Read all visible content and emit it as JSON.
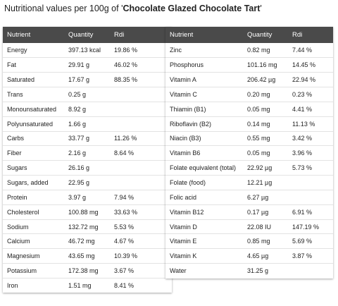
{
  "title": {
    "prefix": "Nutritional values per 100g of '",
    "name": "Chocolate Glazed Chocolate Tart",
    "suffix": "'"
  },
  "headers": {
    "nutrient": "Nutrient",
    "quantity": "Quantity",
    "rdi": "Rdi"
  },
  "left_rows": [
    {
      "nutrient": "Energy",
      "quantity": "397.13 kcal",
      "rdi": "19.86 %"
    },
    {
      "nutrient": "Fat",
      "quantity": "29.91 g",
      "rdi": "46.02 %"
    },
    {
      "nutrient": "Saturated",
      "quantity": "17.67 g",
      "rdi": "88.35 %"
    },
    {
      "nutrient": "Trans",
      "quantity": "0.25 g",
      "rdi": ""
    },
    {
      "nutrient": "Monounsaturated",
      "quantity": "8.92 g",
      "rdi": ""
    },
    {
      "nutrient": "Polyunsaturated",
      "quantity": "1.66 g",
      "rdi": ""
    },
    {
      "nutrient": "Carbs",
      "quantity": "33.77 g",
      "rdi": "11.26 %"
    },
    {
      "nutrient": "Fiber",
      "quantity": "2.16 g",
      "rdi": "8.64 %"
    },
    {
      "nutrient": "Sugars",
      "quantity": "26.16 g",
      "rdi": ""
    },
    {
      "nutrient": "Sugars, added",
      "quantity": "22.95 g",
      "rdi": ""
    },
    {
      "nutrient": "Protein",
      "quantity": "3.97 g",
      "rdi": "7.94 %"
    },
    {
      "nutrient": "Cholesterol",
      "quantity": "100.88 mg",
      "rdi": "33.63 %"
    },
    {
      "nutrient": "Sodium",
      "quantity": "132.72 mg",
      "rdi": "5.53 %"
    },
    {
      "nutrient": "Calcium",
      "quantity": "46.72 mg",
      "rdi": "4.67 %"
    },
    {
      "nutrient": "Magnesium",
      "quantity": "43.65 mg",
      "rdi": "10.39 %"
    },
    {
      "nutrient": "Potassium",
      "quantity": "172.38 mg",
      "rdi": "3.67 %"
    },
    {
      "nutrient": "Iron",
      "quantity": "1.51 mg",
      "rdi": "8.41 %"
    }
  ],
  "right_rows": [
    {
      "nutrient": "Zinc",
      "quantity": "0.82 mg",
      "rdi": "7.44 %"
    },
    {
      "nutrient": "Phosphorus",
      "quantity": "101.16 mg",
      "rdi": "14.45 %"
    },
    {
      "nutrient": "Vitamin A",
      "quantity": "206.42 µg",
      "rdi": "22.94 %"
    },
    {
      "nutrient": "Vitamin C",
      "quantity": "0.20 mg",
      "rdi": "0.23 %"
    },
    {
      "nutrient": "Thiamin (B1)",
      "quantity": "0.05 mg",
      "rdi": "4.41 %"
    },
    {
      "nutrient": "Riboflavin (B2)",
      "quantity": "0.14 mg",
      "rdi": "11.13 %"
    },
    {
      "nutrient": "Niacin (B3)",
      "quantity": "0.55 mg",
      "rdi": "3.42 %"
    },
    {
      "nutrient": "Vitamin B6",
      "quantity": "0.05 mg",
      "rdi": "3.96 %"
    },
    {
      "nutrient": "Folate equivalent (total)",
      "quantity": "22.92 µg",
      "rdi": "5.73 %"
    },
    {
      "nutrient": "Folate (food)",
      "quantity": "12.21 µg",
      "rdi": ""
    },
    {
      "nutrient": "Folic acid",
      "quantity": "6.27 µg",
      "rdi": ""
    },
    {
      "nutrient": "Vitamin B12",
      "quantity": "0.17 µg",
      "rdi": "6.91 %"
    },
    {
      "nutrient": "Vitamin D",
      "quantity": "22.08 IU",
      "rdi": "147.19 %"
    },
    {
      "nutrient": "Vitamin E",
      "quantity": "0.85 mg",
      "rdi": "5.69 %"
    },
    {
      "nutrient": "Vitamin K",
      "quantity": "4.65 µg",
      "rdi": "3.87 %"
    },
    {
      "nutrient": "Water",
      "quantity": "31.25 g",
      "rdi": ""
    }
  ]
}
